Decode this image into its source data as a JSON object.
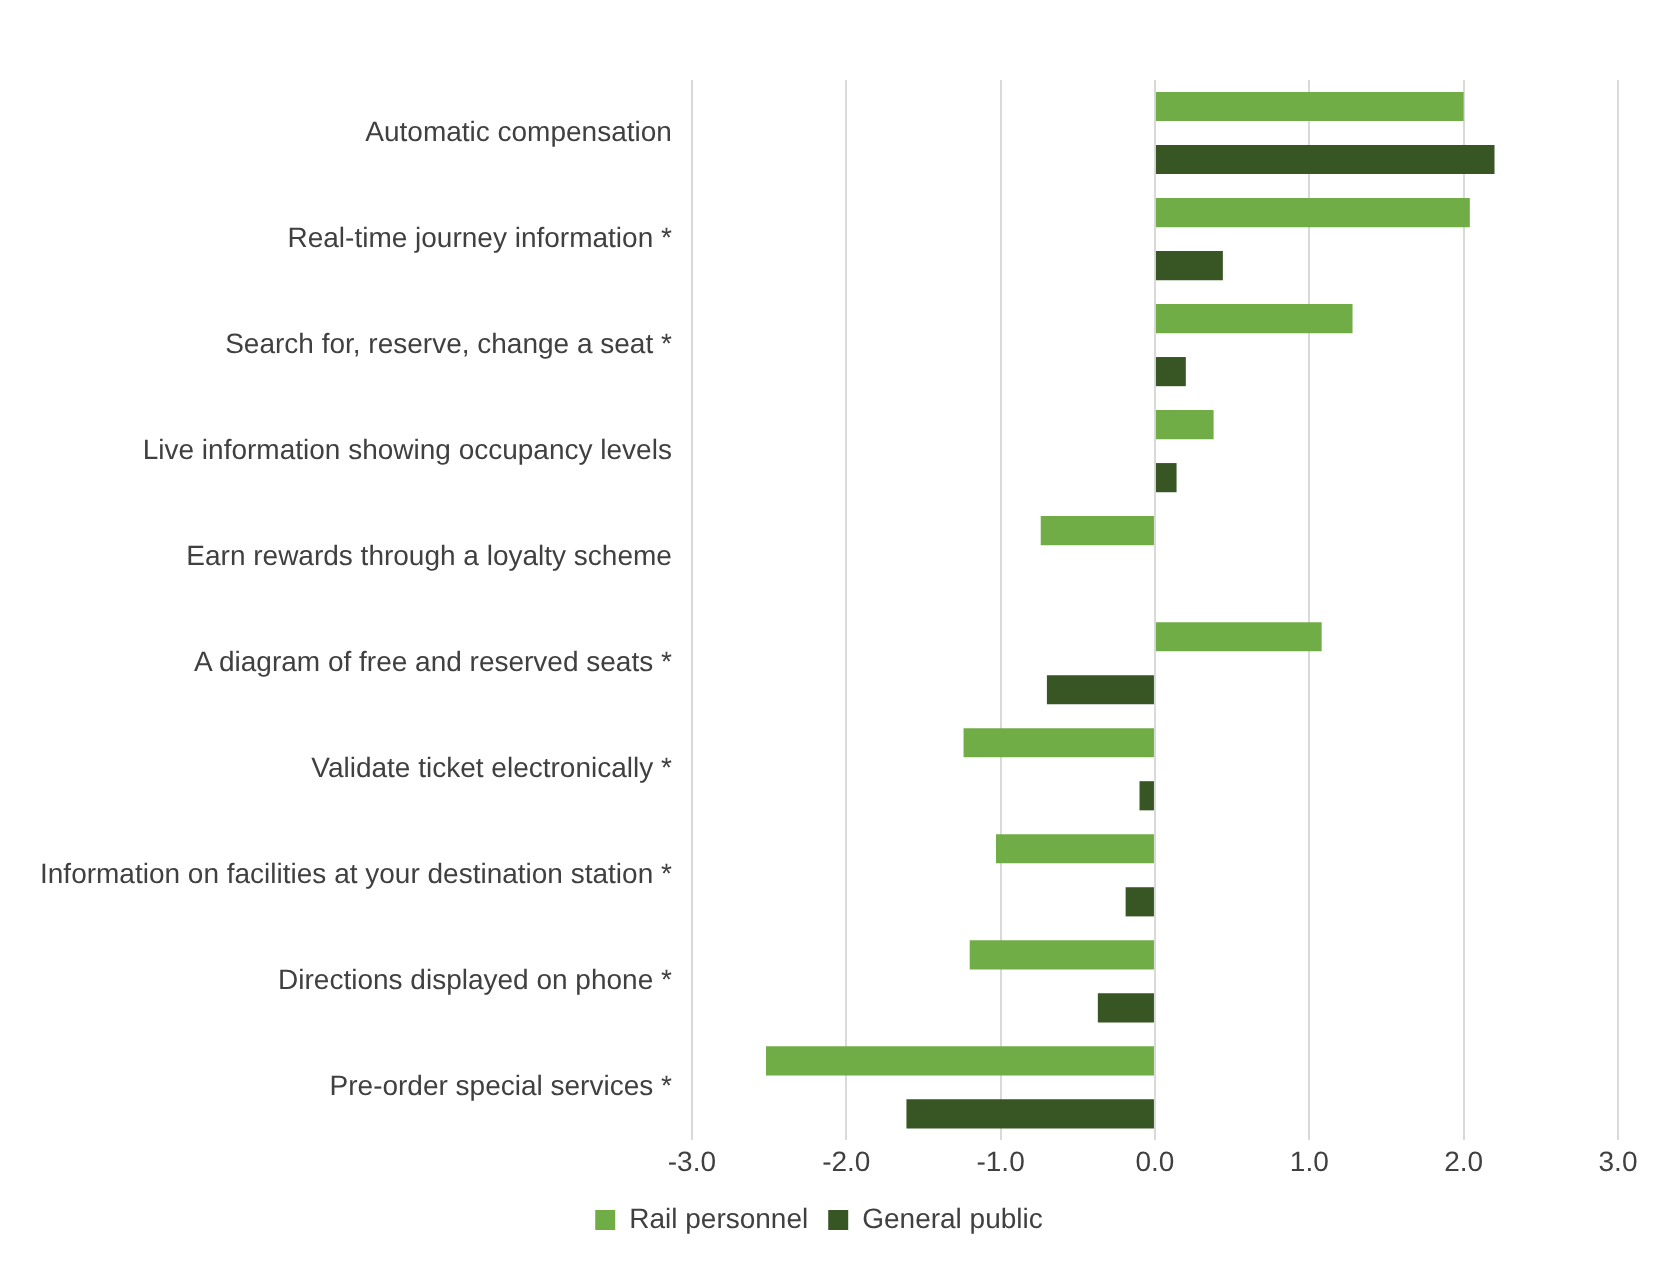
{
  "chart_data": {
    "type": "bar",
    "orientation": "horizontal",
    "categories": [
      "Automatic compensation",
      "Real-time journey information *",
      "Search for, reserve, change a seat *",
      "Live information showing occupancy levels",
      "Earn rewards through a loyalty scheme",
      "A diagram of free and reserved seats *",
      "Validate ticket electronically *",
      "Information on facilities at your destination station *",
      "Directions displayed on phone *",
      "Pre-order special services *"
    ],
    "series": [
      {
        "name": "Rail personnel",
        "color": "#70ad47",
        "values": [
          2.0,
          2.04,
          1.28,
          0.38,
          -0.74,
          1.08,
          -1.24,
          -1.03,
          -1.2,
          -2.52
        ]
      },
      {
        "name": "General public",
        "color": "#375623",
        "values": [
          2.2,
          0.44,
          0.2,
          0.14,
          0,
          -0.7,
          -0.1,
          -0.19,
          -0.37,
          -1.61
        ]
      }
    ],
    "xlim": [
      -3,
      3
    ],
    "xticks": [
      {
        "value": -3,
        "label": "-3.0"
      },
      {
        "value": -2,
        "label": "-2.0"
      },
      {
        "value": -1,
        "label": "-1.0"
      },
      {
        "value": 0,
        "label": "0.0"
      },
      {
        "value": 1,
        "label": "1.0"
      },
      {
        "value": 2,
        "label": "2.0"
      },
      {
        "value": 3,
        "label": "3.0"
      }
    ],
    "grid": "x",
    "legend": "bottom"
  }
}
